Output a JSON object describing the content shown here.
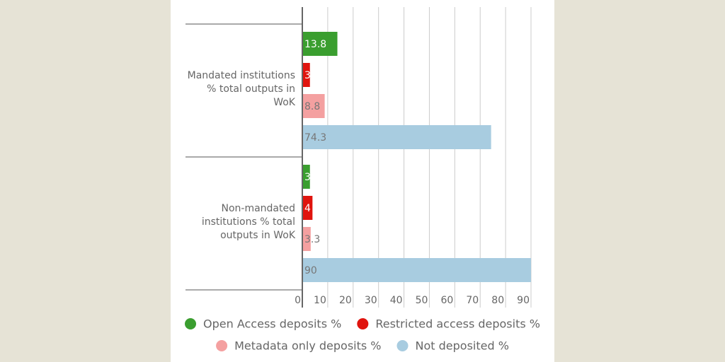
{
  "chart_data": {
    "type": "bar",
    "orientation": "horizontal",
    "categories": [
      "Mandated institutions % total outputs in WoK",
      "Non-mandated institutions % total outputs in WoK"
    ],
    "series": [
      {
        "name": "Open Access deposits %",
        "color": "#3a9e2f",
        "values": [
          13.8,
          3
        ]
      },
      {
        "name": "Restricted access deposits %",
        "color": "#e0140e",
        "values": [
          3,
          4
        ]
      },
      {
        "name": "Metadata only deposits %",
        "color": "#f4a0a0",
        "values": [
          8.8,
          3.3
        ]
      },
      {
        "name": "Not deposited %",
        "color": "#a8cce0",
        "values": [
          74.3,
          90
        ]
      }
    ],
    "xlim": [
      0,
      90
    ],
    "xticks": [
      0,
      10,
      20,
      30,
      40,
      50,
      60,
      70,
      80,
      90
    ],
    "grid": true,
    "legend": "bottom"
  }
}
